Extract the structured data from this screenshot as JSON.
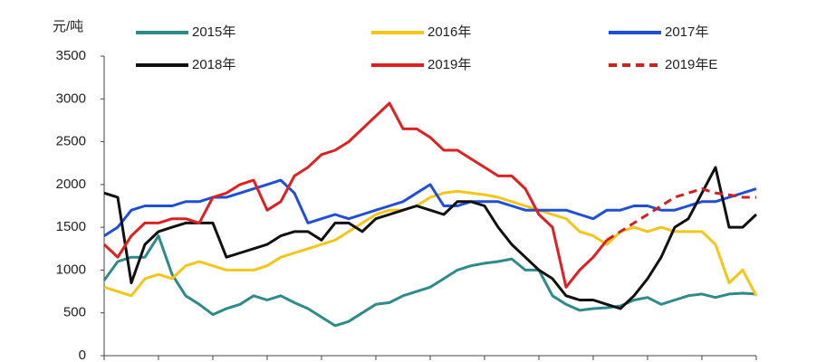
{
  "chart_data": {
    "type": "line",
    "y_label": "元/吨",
    "ylim": [
      0,
      3500
    ],
    "yticks": [
      0,
      500,
      1000,
      1500,
      2000,
      2500,
      3000,
      3500
    ],
    "grid": false,
    "legend": "top",
    "categories": [
      null,
      null,
      null,
      null,
      null,
      null,
      null,
      null,
      null,
      null,
      null,
      null,
      null,
      null,
      null,
      null,
      null,
      null,
      null,
      null,
      null,
      null,
      null,
      null,
      null,
      null,
      null,
      null,
      null,
      null,
      null,
      null,
      null,
      null,
      null,
      null,
      null,
      null,
      null,
      null,
      null,
      null,
      null,
      null,
      null,
      null,
      null,
      null,
      null
    ],
    "series": [
      {
        "name": "2015年",
        "color": "#2e8b8b",
        "dash": false,
        "values": [
          880,
          1100,
          1150,
          1150,
          1400,
          950,
          700,
          600,
          480,
          550,
          600,
          700,
          650,
          700,
          620,
          550,
          450,
          350,
          400,
          500,
          600,
          620,
          700,
          750,
          800,
          900,
          1000,
          1050,
          1080,
          1100,
          1130,
          1000,
          1000,
          700,
          600,
          530,
          550,
          560,
          580,
          650,
          680,
          600,
          650,
          700,
          720,
          680,
          720,
          730,
          720
        ]
      },
      {
        "name": "2016年",
        "color": "#f5c518",
        "dash": false,
        "values": [
          800,
          750,
          700,
          900,
          950,
          900,
          1050,
          1100,
          1050,
          1000,
          1000,
          1000,
          1050,
          1150,
          1200,
          1250,
          1300,
          1350,
          1450,
          1550,
          1650,
          1700,
          1700,
          1750,
          1850,
          1900,
          1920,
          1900,
          1880,
          1850,
          1800,
          1750,
          1700,
          1650,
          1600,
          1450,
          1400,
          1300,
          1450,
          1500,
          1450,
          1500,
          1450,
          1450,
          1450,
          1300,
          850,
          1000,
          700
        ]
      },
      {
        "name": "2017年",
        "color": "#1f4fd6",
        "dash": false,
        "values": [
          1400,
          1500,
          1700,
          1750,
          1750,
          1750,
          1800,
          1800,
          1850,
          1850,
          1900,
          1950,
          2000,
          2050,
          1900,
          1550,
          1600,
          1650,
          1600,
          1650,
          1700,
          1750,
          1800,
          1900,
          2000,
          1750,
          1750,
          1800,
          1800,
          1800,
          1750,
          1700,
          1700,
          1700,
          1700,
          1650,
          1600,
          1700,
          1700,
          1750,
          1750,
          1700,
          1700,
          1750,
          1800,
          1800,
          1850,
          1900,
          1950
        ]
      },
      {
        "name": "2018年",
        "color": "#111111",
        "dash": false,
        "values": [
          1900,
          1850,
          850,
          1300,
          1450,
          1500,
          1550,
          1550,
          1550,
          1150,
          1200,
          1250,
          1300,
          1400,
          1450,
          1450,
          1350,
          1550,
          1550,
          1450,
          1600,
          1650,
          1700,
          1750,
          1700,
          1650,
          1800,
          1800,
          1750,
          1500,
          1300,
          1150,
          1000,
          900,
          700,
          650,
          650,
          600,
          550,
          700,
          900,
          1150,
          1500,
          1600,
          1900,
          2200,
          1500,
          1500,
          1650
        ]
      },
      {
        "name": "2019年",
        "color": "#e02020",
        "dash": false,
        "values": [
          1300,
          1150,
          1400,
          1550,
          1550,
          1600,
          1600,
          1550,
          1850,
          1900,
          2000,
          2050,
          1700,
          1800,
          2100,
          2200,
          2350,
          2400,
          2500,
          2650,
          2800,
          2950,
          2650,
          2650,
          2550,
          2400,
          2400,
          2300,
          2200,
          2100,
          2100,
          1950,
          1650,
          1500,
          800,
          1000,
          1150,
          1350,
          null,
          null,
          null,
          null,
          null,
          null,
          null,
          null,
          null,
          null,
          null
        ]
      },
      {
        "name": "2019年E",
        "color": "#d02020",
        "dash": true,
        "values": [
          null,
          null,
          null,
          null,
          null,
          null,
          null,
          null,
          null,
          null,
          null,
          null,
          null,
          null,
          null,
          null,
          null,
          null,
          null,
          null,
          null,
          null,
          null,
          null,
          null,
          null,
          null,
          null,
          null,
          null,
          null,
          null,
          null,
          null,
          null,
          null,
          null,
          1350,
          1450,
          1550,
          1650,
          1750,
          1850,
          1900,
          1950,
          1900,
          1880,
          1850,
          1850
        ]
      }
    ]
  }
}
